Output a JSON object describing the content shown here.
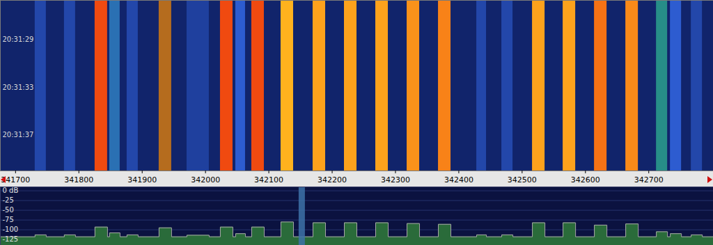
{
  "chart_data": {
    "type": "waterfall",
    "xlim": [
      341676,
      342802
    ],
    "xticks": [
      341700,
      341800,
      341900,
      342000,
      342100,
      342200,
      342300,
      342400,
      342500,
      342600,
      342700
    ],
    "floor": -118,
    "channels": [
      {
        "x1": 341730.8,
        "x2": 341748.4,
        "level": -113
      },
      {
        "x1": 341777.0,
        "x2": 341794.6,
        "level": -113
      },
      {
        "x1": 341825.4,
        "x2": 341845.2,
        "level": -93
      },
      {
        "x1": 341848.5,
        "x2": 341865.0,
        "level": -108
      },
      {
        "x1": 341876.0,
        "x2": 341893.6,
        "level": -113
      },
      {
        "x1": 341926.6,
        "x2": 341946.4,
        "level": -95
      },
      {
        "x1": 341970.6,
        "x2": 342005.8,
        "level": -114
      },
      {
        "x1": 342023.4,
        "x2": 342043.2,
        "level": -93
      },
      {
        "x1": 342047.6,
        "x2": 342063.0,
        "level": -110
      },
      {
        "x1": 342072.9,
        "x2": 342092.7,
        "level": -93
      },
      {
        "x1": 342119.1,
        "x2": 342138.9,
        "level": -80
      },
      {
        "x1": 342169.7,
        "x2": 342189.5,
        "level": -82
      },
      {
        "x1": 342219.2,
        "x2": 342239.0,
        "level": -82
      },
      {
        "x1": 342268.7,
        "x2": 342288.5,
        "level": -82
      },
      {
        "x1": 342318.2,
        "x2": 342338.0,
        "level": -84
      },
      {
        "x1": 342367.7,
        "x2": 342387.5,
        "level": -86
      },
      {
        "x1": 342428.2,
        "x2": 342443.6,
        "level": -113
      },
      {
        "x1": 342467.8,
        "x2": 342485.4,
        "level": -113
      },
      {
        "x1": 342516.2,
        "x2": 342536.0,
        "level": -82
      },
      {
        "x1": 342564.6,
        "x2": 342584.4,
        "level": -82
      },
      {
        "x1": 342614.1,
        "x2": 342633.9,
        "level": -88
      },
      {
        "x1": 342663.6,
        "x2": 342683.4,
        "level": -85
      },
      {
        "x1": 342712.0,
        "x2": 342729.6,
        "level": -105
      },
      {
        "x1": 342734.0,
        "x2": 342751.6,
        "level": -110
      },
      {
        "x1": 342767.0,
        "x2": 342784.6,
        "level": -113
      }
    ],
    "waterfall": {
      "type": "heatmap",
      "ylim": [
        25.7,
        40
      ],
      "yticks": [
        {
          "value": 29,
          "label": "20:31:29"
        },
        {
          "value": 33,
          "label": "20:31:33"
        },
        {
          "value": 37,
          "label": "20:31:37"
        }
      ]
    },
    "spectrum": {
      "type": "area",
      "color": "#2a6b3a",
      "grid": true,
      "ylim": [
        -140,
        10
      ],
      "yticks": [
        {
          "value": 0,
          "label": "0 dB"
        },
        -25,
        -50,
        -75,
        -100,
        -125
      ],
      "demod_frequency": 342152
    }
  }
}
